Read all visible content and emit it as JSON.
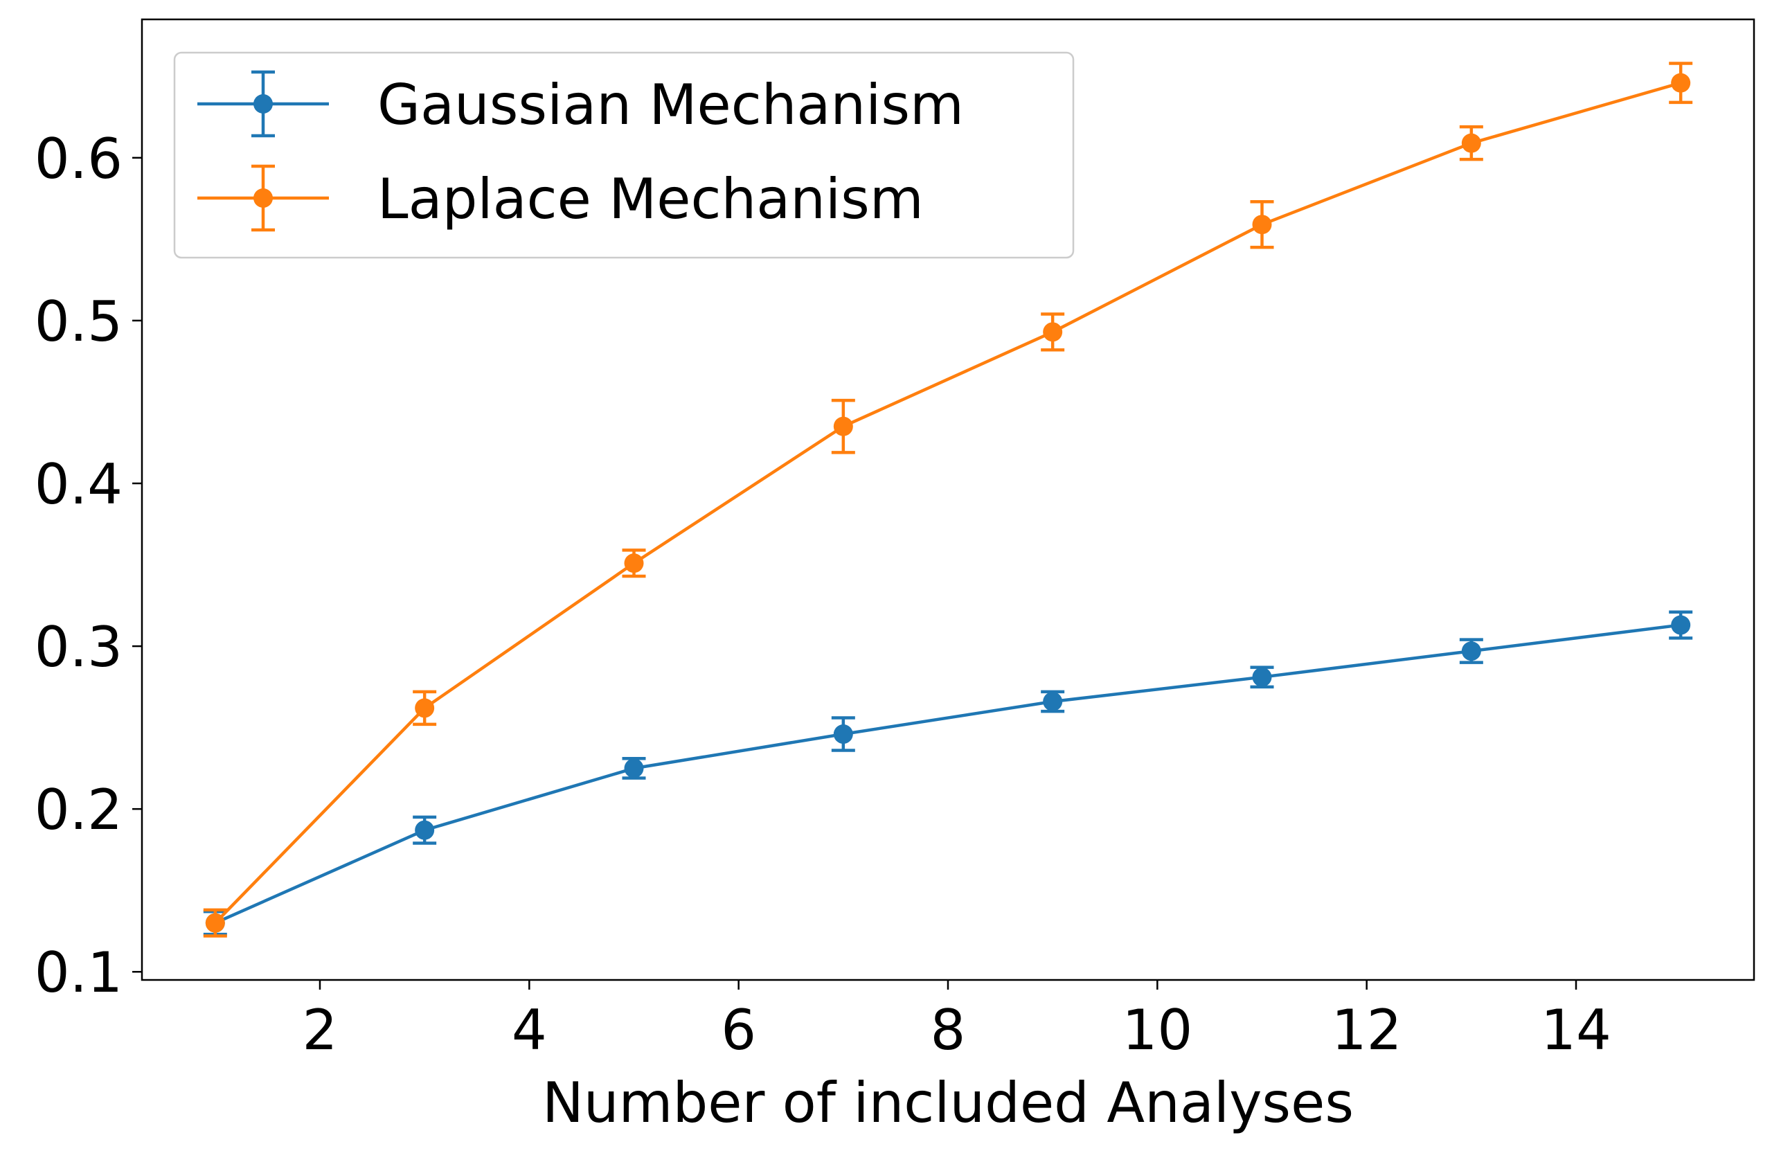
{
  "chart_data": {
    "type": "line",
    "title": "",
    "xlabel": "Number of included Analyses",
    "ylabel": "",
    "xlim": [
      0.3,
      15.7
    ],
    "ylim": [
      0.095,
      0.685
    ],
    "x_ticks": [
      2,
      4,
      6,
      8,
      10,
      12,
      14
    ],
    "y_ticks": [
      0.1,
      0.2,
      0.3,
      0.4,
      0.5,
      0.6
    ],
    "grid": false,
    "legend_position": "top-left",
    "x": [
      1,
      3,
      5,
      7,
      9,
      11,
      13,
      15
    ],
    "series": [
      {
        "name": "Gaussian Mechanism",
        "color": "#1f77b4",
        "values": [
          0.13,
          0.187,
          0.225,
          0.246,
          0.266,
          0.281,
          0.297,
          0.313
        ],
        "errors": [
          0.007,
          0.008,
          0.006,
          0.01,
          0.006,
          0.006,
          0.007,
          0.008
        ]
      },
      {
        "name": "Laplace Mechanism",
        "color": "#ff7f0e",
        "values": [
          0.13,
          0.262,
          0.351,
          0.435,
          0.493,
          0.559,
          0.609,
          0.646
        ],
        "errors": [
          0.008,
          0.01,
          0.008,
          0.016,
          0.011,
          0.014,
          0.01,
          0.012
        ]
      }
    ]
  }
}
